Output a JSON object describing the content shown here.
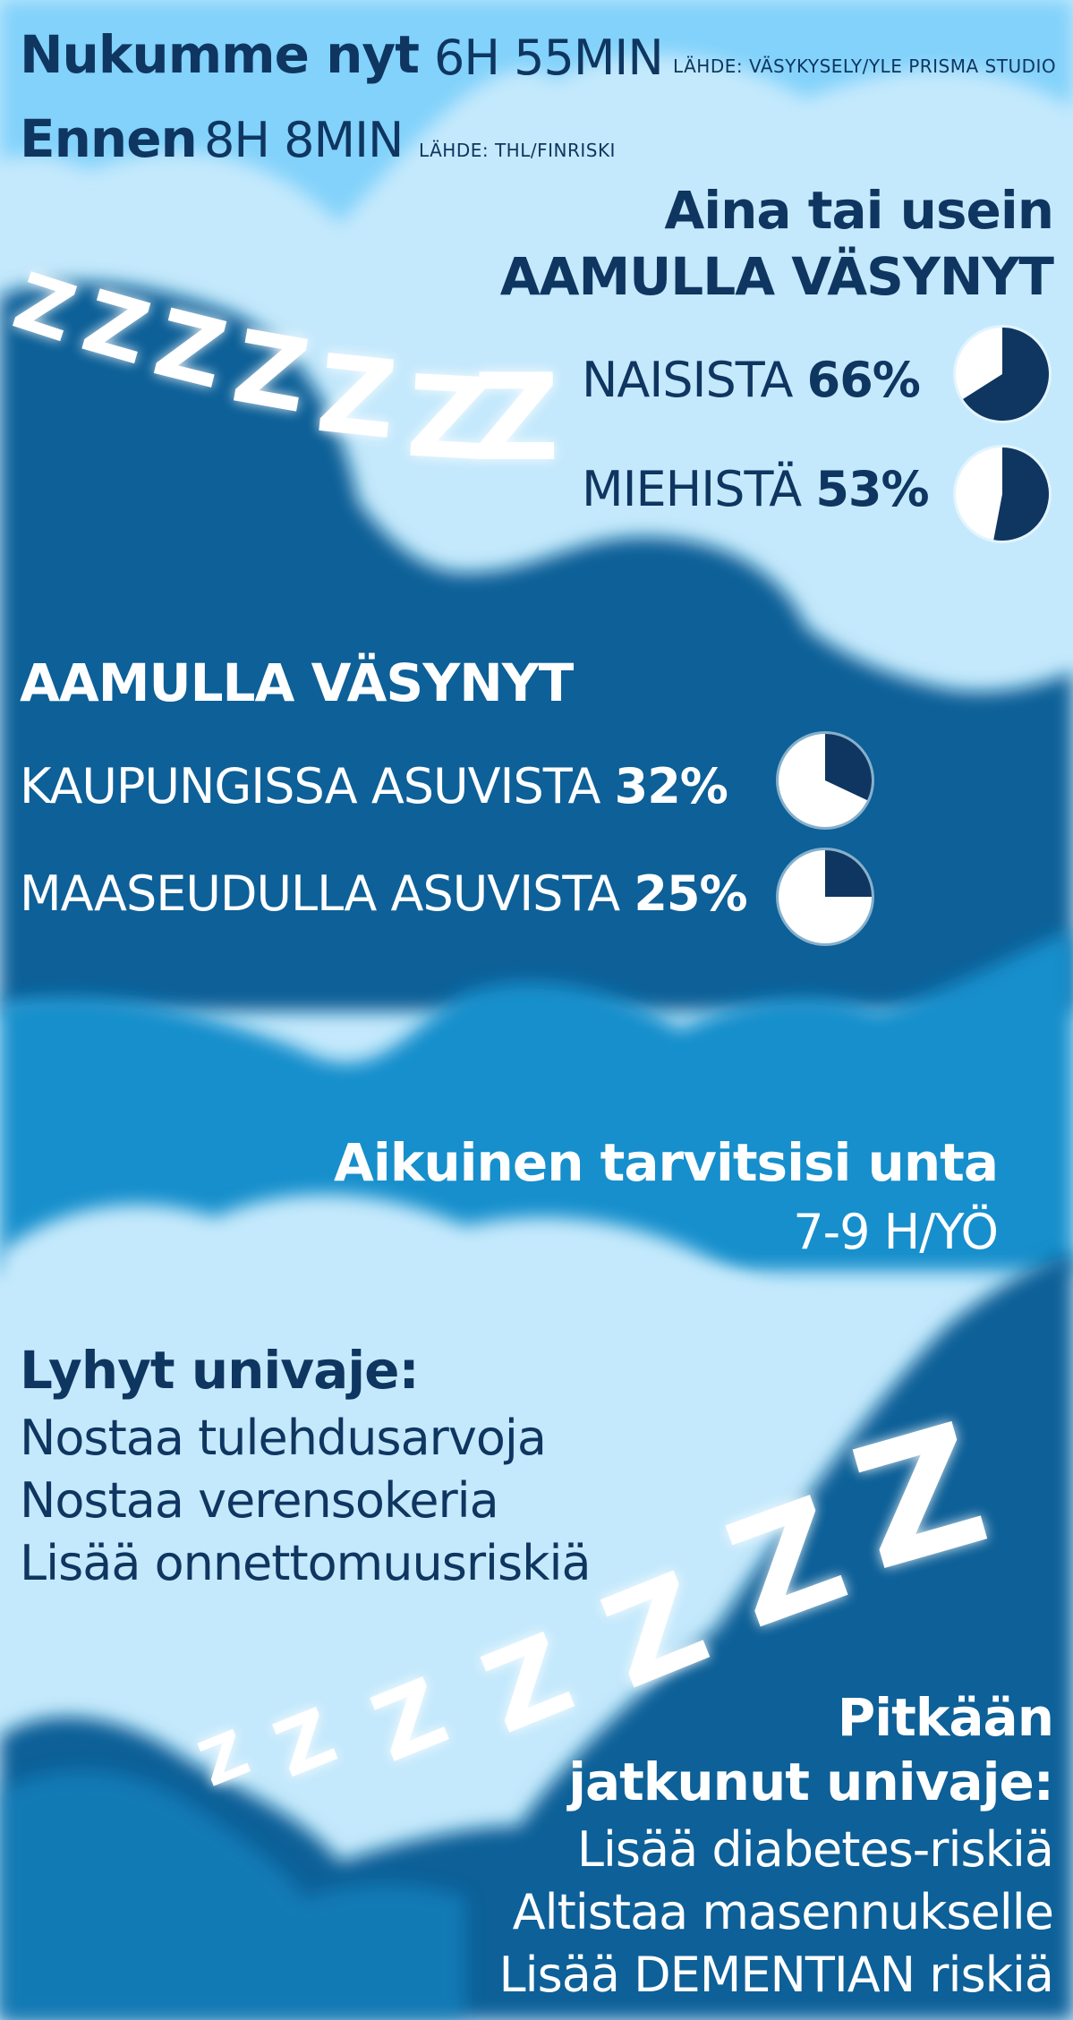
{
  "header": {
    "now_label": "Nukumme nyt",
    "now_value": "6H 55MIN",
    "now_source": "LÄHDE: VÄSYKYSELY/YLE PRISMA STUDIO",
    "before_label": "Ennen",
    "before_value": "8H 8MIN",
    "before_source": "LÄHDE: THL/FINRISKI"
  },
  "gender": {
    "title_line1": "Aina tai usein",
    "title_line2": "AAMULLA VÄSYNYT",
    "women_label": "NAISISTA",
    "women_value": "66%",
    "men_label": "MIEHISTÄ",
    "men_value": "53%"
  },
  "location": {
    "title": "AAMULLA VÄSYNYT",
    "city_label": "KAUPUNGISSA ASUVISTA",
    "city_value": "32%",
    "rural_label": "MAASEUDULLA ASUVISTA",
    "rural_value": "25%"
  },
  "need": {
    "title": "Aikuinen tarvitsisi unta",
    "value": "7-9 H/YÖ"
  },
  "short_deprivation": {
    "title": "Lyhyt univaje:",
    "items": [
      "Nostaa tulehdusarvoja",
      "Nostaa verensokeria",
      "Lisää onnettomuusriskiä"
    ]
  },
  "long_deprivation": {
    "title_line1": "Pitkään",
    "title_line2": "jatkunut univaje:",
    "items": [
      "Lisää diabetes-riskiä",
      "Altistaa masennukselle",
      "Lisää DEMENTIAN riskiä"
    ]
  },
  "decor": {
    "z_glyph": "Z"
  },
  "colors": {
    "dark_navy": "#0f3660",
    "sky_light": "#c9ecfd",
    "cloud_dark": "#0a6198",
    "cloud_mid": "#178fcc",
    "pie_fill": "#0f3660",
    "pie_bg": "#ffffff"
  },
  "chart_data": [
    {
      "type": "pie",
      "title": "Aina tai usein AAMULLA VÄSYNYT",
      "categories": [
        "NAISISTA"
      ],
      "values": [
        66
      ],
      "unit": "%"
    },
    {
      "type": "pie",
      "title": "Aina tai usein AAMULLA VÄSYNYT",
      "categories": [
        "MIEHISTÄ"
      ],
      "values": [
        53
      ],
      "unit": "%"
    },
    {
      "type": "pie",
      "title": "AAMULLA VÄSYNYT",
      "categories": [
        "KAUPUNGISSA ASUVISTA"
      ],
      "values": [
        32
      ],
      "unit": "%"
    },
    {
      "type": "pie",
      "title": "AAMULLA VÄSYNYT",
      "categories": [
        "MAASEUDULLA ASUVISTA"
      ],
      "values": [
        25
      ],
      "unit": "%"
    }
  ]
}
